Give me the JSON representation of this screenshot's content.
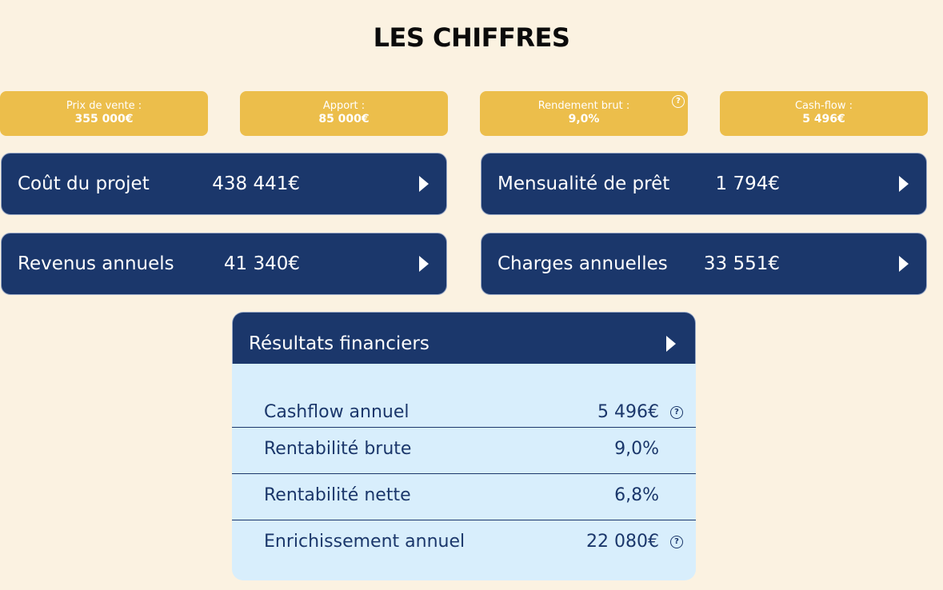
{
  "page": {
    "title": "LES CHIFFRES"
  },
  "kpis": [
    {
      "label": "Prix de vente :",
      "value": "355 000€"
    },
    {
      "label": "Apport :",
      "value": "85 000€"
    },
    {
      "label": "Rendement brut :",
      "value": "9,0%",
      "help_icon": "question-circle-icon"
    },
    {
      "label": "Cash-flow :",
      "value": "5 496€"
    }
  ],
  "panels": [
    {
      "label": "Coût du projet",
      "value": "438 441€"
    },
    {
      "label": "Mensualité de prêt",
      "value": "1 794€"
    },
    {
      "label": "Revenus annuels",
      "value": "41 340€"
    },
    {
      "label": "Charges annuelles",
      "value": "33 551€"
    }
  ],
  "results": {
    "title": "Résultats financiers",
    "rows": [
      {
        "label": "Cashflow annuel",
        "value": "5 496€",
        "help_icon": "question-circle-icon"
      },
      {
        "label": "Rentabilité brute",
        "value": "9,0%"
      },
      {
        "label": "Rentabilité nette",
        "value": "6,8%"
      },
      {
        "label": "Enrichissement annuel",
        "value": "22 080€",
        "help_icon": "question-circle-icon"
      }
    ]
  },
  "icons": {
    "help_glyph": "?",
    "expand_icon": "play-triangle-icon"
  },
  "colors": {
    "background": "#fbf2e1",
    "kpi_yellow": "#ecbe4b",
    "navy": "#1b376b",
    "results_body": "#d8eefc"
  }
}
